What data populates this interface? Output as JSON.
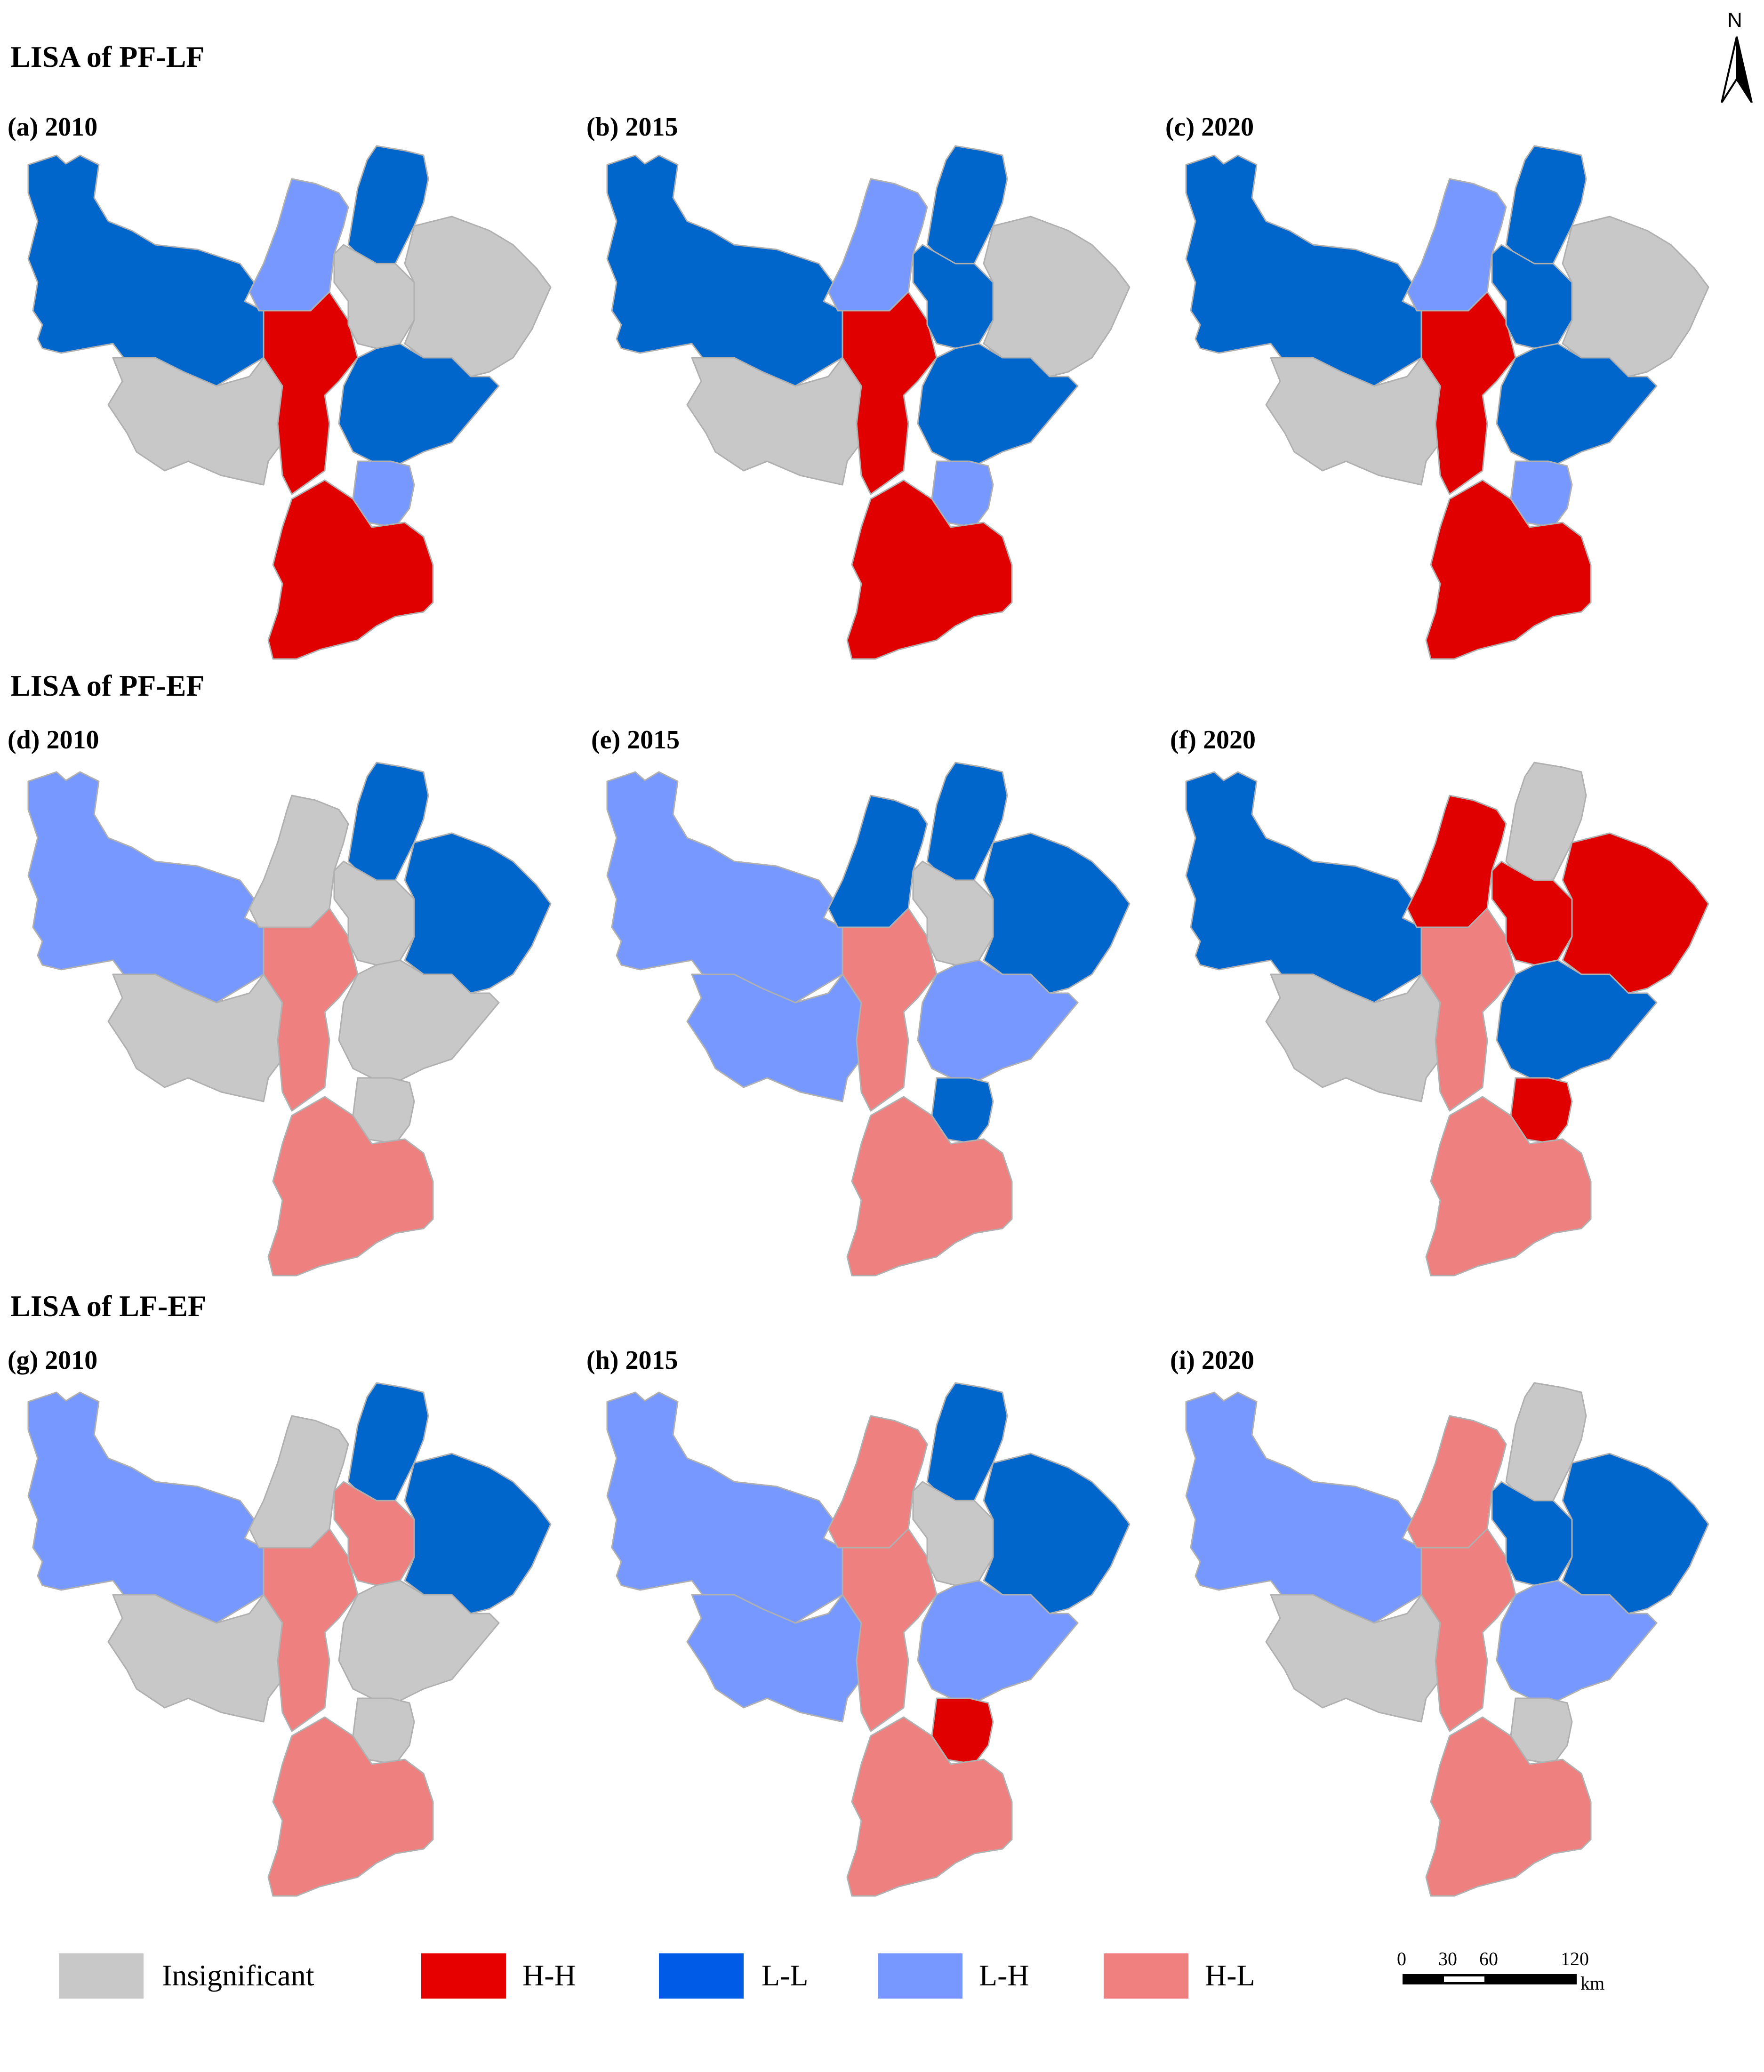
{
  "sections": [
    {
      "title": "LISA of PF-LF",
      "panels": [
        {
          "label": "(a) 2010",
          "regions": {
            "W": "L-L",
            "SW": "Insignificant",
            "NC": "L-H",
            "C": "H-H",
            "NE1": "L-L",
            "NE2": "Insignificant",
            "E": "Insignificant",
            "ME": "L-L",
            "SC": "L-H",
            "S": "H-H"
          }
        },
        {
          "label": "(b) 2015",
          "regions": {
            "W": "L-L",
            "SW": "Insignificant",
            "NC": "L-H",
            "C": "H-H",
            "NE1": "L-L",
            "NE2": "L-L",
            "E": "Insignificant",
            "ME": "L-L",
            "SC": "L-H",
            "S": "H-H"
          }
        },
        {
          "label": "(c) 2020",
          "regions": {
            "W": "L-L",
            "SW": "Insignificant",
            "NC": "L-H",
            "C": "H-H",
            "NE1": "L-L",
            "NE2": "L-L",
            "E": "Insignificant",
            "ME": "L-L",
            "SC": "L-H",
            "S": "H-H"
          }
        }
      ]
    },
    {
      "title": "LISA of PF-EF",
      "panels": [
        {
          "label": "(d) 2010",
          "regions": {
            "W": "L-H",
            "SW": "Insignificant",
            "NC": "Insignificant",
            "C": "H-L",
            "NE1": "L-L",
            "NE2": "Insignificant",
            "E": "L-L",
            "ME": "Insignificant",
            "SC": "Insignificant",
            "S": "H-L"
          }
        },
        {
          "label": "(e) 2015",
          "regions": {
            "W": "L-H",
            "SW": "L-H",
            "NC": "L-L",
            "C": "H-L",
            "NE1": "L-L",
            "NE2": "Insignificant",
            "E": "L-L",
            "ME": "L-H",
            "SC": "L-L",
            "S": "H-L"
          }
        },
        {
          "label": "(f) 2020",
          "regions": {
            "W": "L-L",
            "SW": "Insignificant",
            "NC": "H-H",
            "C": "H-L",
            "NE1": "Insignificant",
            "NE2": "H-H",
            "E": "H-H",
            "ME": "L-L",
            "SC": "H-H",
            "S": "H-L"
          }
        }
      ]
    },
    {
      "title": "LISA of LF-EF",
      "panels": [
        {
          "label": "(g) 2010",
          "regions": {
            "W": "L-H",
            "SW": "Insignificant",
            "NC": "Insignificant",
            "C": "H-L",
            "NE1": "L-L",
            "NE2": "H-L",
            "E": "L-L",
            "ME": "Insignificant",
            "SC": "Insignificant",
            "S": "H-L"
          }
        },
        {
          "label": "(h) 2015",
          "regions": {
            "W": "L-H",
            "SW": "L-H",
            "NC": "H-L",
            "C": "H-L",
            "NE1": "L-L",
            "NE2": "Insignificant",
            "E": "L-L",
            "ME": "L-H",
            "SC": "H-H",
            "S": "H-L"
          }
        },
        {
          "label": "(i) 2020",
          "regions": {
            "W": "L-H",
            "SW": "Insignificant",
            "NC": "H-L",
            "C": "H-L",
            "NE1": "Insignificant",
            "NE2": "L-L",
            "E": "L-L",
            "ME": "L-H",
            "SC": "Insignificant",
            "S": "H-L"
          }
        }
      ]
    }
  ],
  "legend": [
    {
      "label": "Insignificant",
      "color": "#c8c8c8"
    },
    {
      "label": "H-H",
      "color": "#e60000"
    },
    {
      "label": "L-L",
      "color": "#005ce6"
    },
    {
      "label": "L-H",
      "color": "#7799ff"
    },
    {
      "label": "H-L",
      "color": "#f08080"
    }
  ],
  "classColors": {
    "Insignificant": "#c8c8c8",
    "H-H": "#e00000",
    "L-L": "#0066cc",
    "L-H": "#7799ff",
    "H-L": "#ee8080"
  },
  "scale_bar": {
    "ticks": [
      "0",
      "30",
      "60",
      "120"
    ],
    "unit": "km"
  },
  "north_arrow": {
    "label": "N"
  }
}
